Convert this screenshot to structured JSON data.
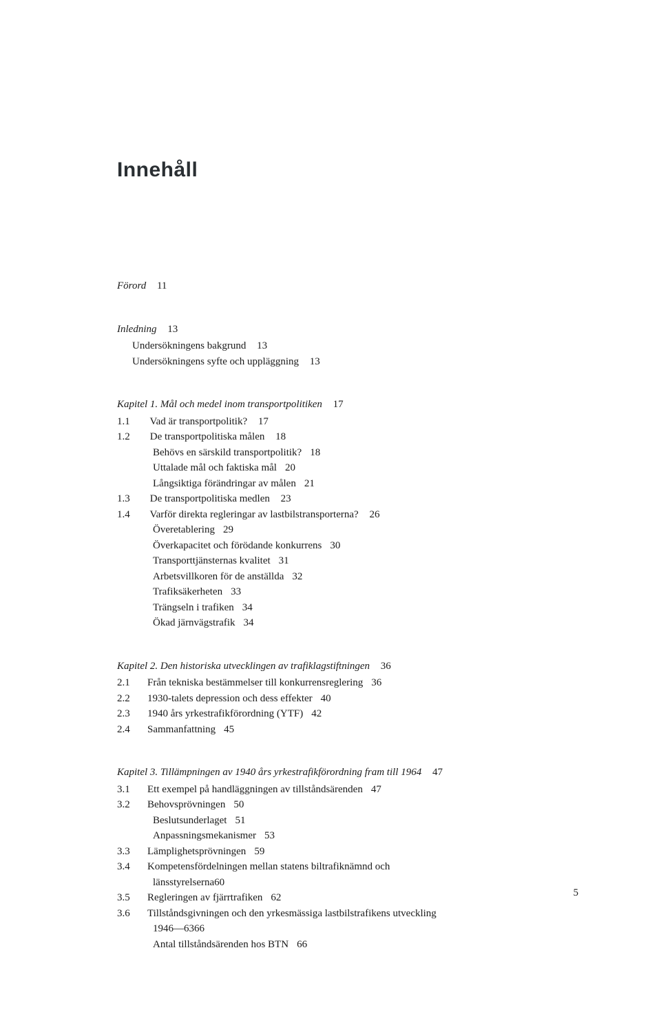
{
  "title": "Innehåll",
  "footer_page": "5",
  "forord": {
    "label": "Förord",
    "page": "11"
  },
  "inledning": {
    "label": "Inledning",
    "page": "13",
    "subs": [
      {
        "text": "Undersökningens bakgrund",
        "page": "13"
      },
      {
        "text": "Undersökningens syfte och uppläggning",
        "page": "13"
      }
    ]
  },
  "kap1": {
    "label": "Kapitel 1.  Mål och medel inom transportpolitiken",
    "page": "17",
    "items": [
      {
        "num": "1.1",
        "text": "Vad är transportpolitik?",
        "page": "17"
      },
      {
        "num": "1.2",
        "text": "De transportpolitiska målen",
        "page": "18",
        "subs": [
          {
            "text": "Behövs en särskild transportpolitik?",
            "page": "18"
          },
          {
            "text": "Uttalade mål och faktiska mål",
            "page": "20"
          },
          {
            "text": "Långsiktiga förändringar av målen",
            "page": "21"
          }
        ]
      },
      {
        "num": "1.3",
        "text": "De transportpolitiska medlen",
        "page": "23"
      },
      {
        "num": "1.4",
        "text": "Varför direkta regleringar av lastbilstransporterna?",
        "page": "26",
        "subs": [
          {
            "text": "Överetablering",
            "page": "29"
          },
          {
            "text": "Överkapacitet och förödande konkurrens",
            "page": "30"
          },
          {
            "text": "Transporttjänsternas kvalitet",
            "page": "31"
          },
          {
            "text": "Arbetsvillkoren för de anställda",
            "page": "32"
          },
          {
            "text": "Trafiksäkerheten",
            "page": "33"
          },
          {
            "text": "Trängseln i trafiken",
            "page": "34"
          },
          {
            "text": "Ökad järnvägstrafik",
            "page": "34"
          }
        ]
      }
    ]
  },
  "kap2": {
    "label": "Kapitel 2.  Den historiska utvecklingen av trafiklagstiftningen",
    "page": "36",
    "items": [
      {
        "num": "2.1",
        "text": "Från tekniska bestämmelser till konkurrensreglering",
        "page": "36"
      },
      {
        "num": "2.2",
        "text": "1930-talets depression och dess effekter",
        "page": "40"
      },
      {
        "num": "2.3",
        "text": "1940 års yrkestrafikförordning (YTF)",
        "page": "42"
      },
      {
        "num": "2.4",
        "text": "Sammanfattning",
        "page": "45"
      }
    ]
  },
  "kap3": {
    "label": "Kapitel 3.  Tillämpningen av 1940 års yrkestrafikförordning fram till 1964",
    "page": "47",
    "items": [
      {
        "num": "3.1",
        "text": "Ett exempel på handläggningen av tillståndsärenden",
        "page": "47"
      },
      {
        "num": "3.2",
        "text": "Behovsprövningen",
        "page": "50",
        "subs": [
          {
            "text": "Beslutsunderlaget",
            "page": "51"
          },
          {
            "text": "Anpassningsmekanismer",
            "page": "53"
          }
        ]
      },
      {
        "num": "3.3",
        "text": "Lämplighetsprövningen",
        "page": "59"
      },
      {
        "num": "3.4",
        "text": "Kompetensfördelningen mellan statens biltrafiknämnd och",
        "page": "",
        "cont": [
          {
            "text": "länsstyrelserna",
            "page": "60"
          }
        ]
      },
      {
        "num": "3.5",
        "text": "Regleringen av fjärrtrafiken",
        "page": "62"
      },
      {
        "num": "3.6",
        "text": "Tillståndsgivningen och den yrkesmässiga lastbilstrafikens utveckling",
        "page": "",
        "cont": [
          {
            "text": "1946—63",
            "page": "66"
          }
        ],
        "subs": [
          {
            "text": "Antal tillståndsärenden hos BTN",
            "page": "66"
          }
        ]
      }
    ]
  }
}
